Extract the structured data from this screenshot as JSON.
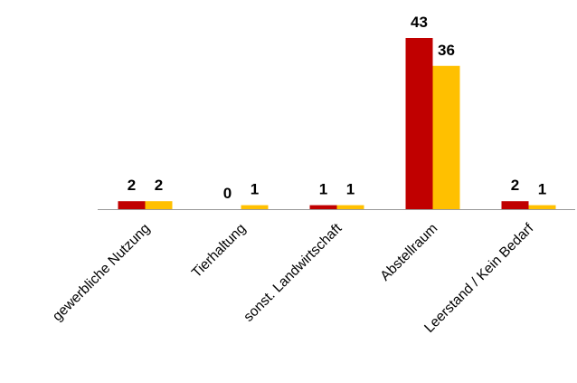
{
  "chart_data": {
    "type": "bar",
    "categories": [
      "gewerbliche Nutzung",
      "Tierhaltung",
      "sonst. Landwirtschaft",
      "Abstellraum",
      "Leerstand / Kein Bedarf"
    ],
    "series": [
      {
        "values": [
          2,
          0,
          1,
          43,
          2
        ],
        "color": "#C00000"
      },
      {
        "values": [
          2,
          1,
          1,
          36,
          1
        ],
        "color": "#FFC000"
      }
    ],
    "title": "",
    "xlabel": "",
    "ylabel": "",
    "ylim": [
      0,
      43
    ],
    "grid": false,
    "legend": "none",
    "data_labels": true
  }
}
